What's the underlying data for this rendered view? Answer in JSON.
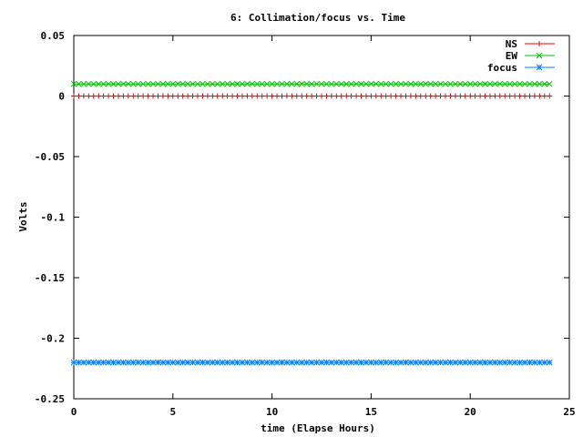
{
  "chart_data": {
    "type": "line",
    "title": "6: Collimation/focus vs. Time",
    "xlabel": "time (Elapse Hours)",
    "ylabel": "Volts",
    "xlim": [
      0,
      25
    ],
    "ylim": [
      -0.25,
      0.05
    ],
    "x_ticks": [
      0,
      5,
      10,
      15,
      20,
      25
    ],
    "x_tick_labels": [
      "0",
      "5",
      "10",
      "15",
      "20",
      "25"
    ],
    "y_ticks": [
      0.05,
      0,
      -0.05,
      -0.1,
      -0.15,
      -0.2,
      -0.25
    ],
    "y_tick_labels": [
      "0.05",
      "0",
      "-0.05",
      "-0.1",
      "-0.15",
      "-0.2",
      "-0.25"
    ],
    "legend_position": "top-right",
    "grid": false,
    "x_range": [
      0,
      24
    ],
    "series": [
      {
        "name": "NS",
        "y": 0.0,
        "color": "#ff0000",
        "marker": "plus"
      },
      {
        "name": "EW",
        "y": 0.01,
        "color": "#00c000",
        "marker": "cross"
      },
      {
        "name": "focus",
        "y": -0.22,
        "color": "#0080ff",
        "marker": "star"
      }
    ]
  }
}
